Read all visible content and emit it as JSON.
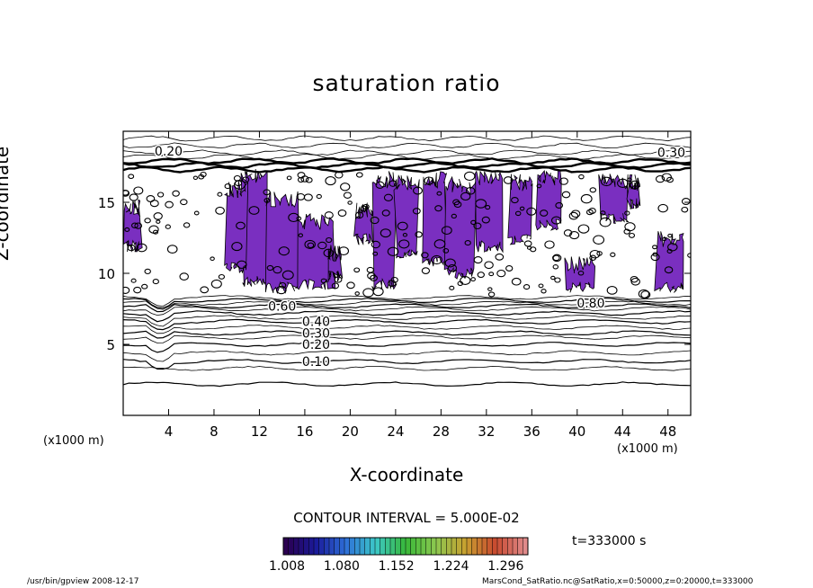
{
  "chart_data": {
    "type": "heatmap",
    "title": "saturation ratio",
    "xlabel": "X-coordinate",
    "ylabel": "Z-coordinate",
    "x_unit_label": "(x1000 m)",
    "xlim": [
      0,
      50
    ],
    "ylim": [
      0,
      20
    ],
    "x_ticks": [
      4,
      8,
      12,
      16,
      20,
      24,
      28,
      32,
      36,
      40,
      44,
      48
    ],
    "y_ticks": [
      5,
      10,
      15
    ],
    "contour_labels": [
      {
        "text": "0.10",
        "x": 17.0,
        "z": 3.8
      },
      {
        "text": "0.20",
        "x": 17.0,
        "z": 5.0
      },
      {
        "text": "0.30",
        "x": 17.0,
        "z": 5.8
      },
      {
        "text": "0.40",
        "x": 17.0,
        "z": 6.6
      },
      {
        "text": "0.60",
        "x": 14.0,
        "z": 7.7
      },
      {
        "text": "0.20",
        "x": 4.0,
        "z": 18.6
      },
      {
        "text": "0.30",
        "x": 48.3,
        "z": 18.5
      },
      {
        "text": "0.80",
        "x": 41.2,
        "z": 7.9
      }
    ],
    "contour_interval_text": "CONTOUR INTERVAL = 5.000E-02",
    "colorbar": {
      "min": 1.008,
      "max": 1.33,
      "tick_labels": [
        "1.008",
        "1.080",
        "1.152",
        "1.224",
        "1.296"
      ],
      "colors": [
        "#2b0050",
        "#1a1a9a",
        "#2e6fd8",
        "#3cc8c8",
        "#38b838",
        "#8cc850",
        "#c8a030",
        "#c84a30",
        "#e08a8a"
      ]
    },
    "fill_color": "#7a2fc0",
    "time_label": "t=333000 s"
  },
  "footer": {
    "left": "/usr/bin/gpview   2008-12-17",
    "right": "MarsCond_SatRatio.nc@SatRatio,x=0:50000,z=0:20000,t=333000"
  }
}
